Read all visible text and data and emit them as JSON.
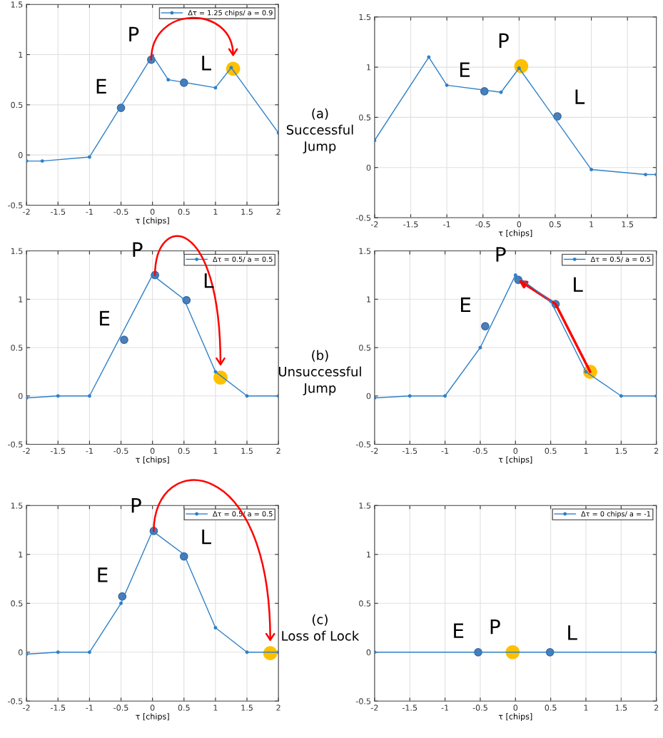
{
  "chart_data": [
    {
      "type": "line",
      "xlabel": "τ [chips]",
      "xlim": [
        -2,
        2
      ],
      "ylim": [
        -0.5,
        1.5
      ],
      "xticks": [
        -2,
        -1.5,
        -1,
        -0.5,
        0,
        0.5,
        1,
        1.5,
        2
      ],
      "yticks": [
        -0.5,
        0,
        0.5,
        1,
        1.5
      ],
      "grid": true,
      "legend": "top right",
      "marker": "circle",
      "series": [
        {
          "type": "line",
          "name": "Δτ = 1.25 chips/ a = 0.9",
          "color": "#2f80c8",
          "x": [
            -2,
            -1.75,
            -1,
            0,
            0.25,
            1,
            1.25,
            2
          ],
          "values": [
            -0.06,
            -0.06,
            -0.02,
            0.99,
            0.75,
            0.67,
            0.87,
            0.22
          ]
        },
        {
          "type": "scatter",
          "color": "#4a7fbb",
          "x": [
            -0.5,
            -0.02,
            0.5
          ],
          "values": [
            0.47,
            0.95,
            0.72
          ]
        },
        {
          "type": "scatter",
          "color": "#ffc000",
          "x": [
            1.28
          ],
          "values": [
            0.86
          ]
        }
      ],
      "annotations": [
        {
          "text": "E",
          "x": -0.5,
          "y": 0.47
        },
        {
          "text": "P",
          "x": -0.02,
          "y": 0.95
        },
        {
          "text": "L",
          "x": 0.5,
          "y": 0.72
        },
        "(a)\nSuccessful\nJump"
      ]
    },
    {
      "type": "line",
      "xlabel": "τ [chips]",
      "xlim": [
        -2,
        1.9
      ],
      "ylim": [
        -0.5,
        1.5
      ],
      "xticks": [
        -2,
        -1.5,
        -1,
        -0.5,
        0,
        0.5,
        1,
        1.5
      ],
      "yticks": [
        -0.5,
        0,
        0.5,
        1,
        1.5
      ],
      "grid": true,
      "marker": "circle",
      "series": [
        {
          "type": "line",
          "color": "#2f80c8",
          "x": [
            -2,
            -1.25,
            -1,
            -0.25,
            0,
            1,
            1.75,
            1.9
          ],
          "values": [
            0.27,
            1.1,
            0.82,
            0.75,
            0.99,
            -0.02,
            -0.07,
            -0.07
          ]
        },
        {
          "type": "scatter",
          "color": "#4a7fbb",
          "x": [
            -0.48,
            0.53
          ],
          "values": [
            0.76,
            0.51
          ]
        },
        {
          "type": "scatter",
          "color": "#ffc000",
          "x": [
            0.03
          ],
          "values": [
            1.01
          ]
        }
      ],
      "annotations": [
        {
          "text": "E",
          "x": -0.48,
          "y": 0.76
        },
        {
          "text": "P",
          "x": 0.03,
          "y": 1.01
        },
        {
          "text": "L",
          "x": 0.53,
          "y": 0.51
        }
      ]
    },
    {
      "type": "line",
      "xlabel": "τ [chips]",
      "xlim": [
        -2,
        2
      ],
      "ylim": [
        -0.5,
        1.5
      ],
      "xticks": [
        -2,
        -1.5,
        -1,
        -0.5,
        0,
        0.5,
        1,
        1.5,
        2
      ],
      "yticks": [
        -0.5,
        0,
        0.5,
        1,
        1.5
      ],
      "grid": true,
      "legend": "top right",
      "marker": "circle",
      "series": [
        {
          "type": "line",
          "name": "Δτ = 0.5/ a = 0.5",
          "color": "#2f80c8",
          "x": [
            -2,
            -1.5,
            -1,
            0,
            0.5,
            1,
            1.5,
            2
          ],
          "values": [
            -0.02,
            0,
            0,
            1.25,
            1.0,
            0.25,
            0,
            0
          ]
        },
        {
          "type": "scatter",
          "color": "#4a7fbb",
          "x": [
            -0.45,
            0.04,
            0.54
          ],
          "values": [
            0.58,
            1.25,
            0.99
          ]
        },
        {
          "type": "scatter",
          "color": "#ffc000",
          "x": [
            1.08
          ],
          "values": [
            0.19
          ]
        }
      ],
      "annotations": [
        {
          "text": "E",
          "x": -0.45,
          "y": 0.58
        },
        {
          "text": "P",
          "x": 0.04,
          "y": 1.25
        },
        {
          "text": "L",
          "x": 0.54,
          "y": 0.99
        },
        "(b)\nUnsuccessful\nJump"
      ]
    },
    {
      "type": "line",
      "xlabel": "τ [chips]",
      "xlim": [
        -2,
        2
      ],
      "ylim": [
        -0.5,
        1.5
      ],
      "xticks": [
        -2,
        -1.5,
        -1,
        -0.5,
        0,
        0.5,
        1,
        1.5,
        2
      ],
      "yticks": [
        -0.5,
        0,
        0.5,
        1,
        1.5
      ],
      "grid": true,
      "legend": "top right",
      "marker": "circle",
      "series": [
        {
          "type": "line",
          "name": "Δτ = 0.5/ a = 0.5",
          "color": "#2f80c8",
          "x": [
            -2,
            -1.5,
            -1,
            -0.5,
            0,
            0.5,
            1,
            1.5,
            2
          ],
          "values": [
            -0.02,
            0,
            0,
            0.5,
            1.25,
            0.98,
            0.25,
            0,
            0
          ]
        },
        {
          "type": "scatter",
          "color": "#4a7fbb",
          "x": [
            -0.43,
            0.04,
            0.57
          ],
          "values": [
            0.72,
            1.2,
            0.95
          ]
        },
        {
          "type": "scatter",
          "color": "#ffc000",
          "x": [
            1.06
          ],
          "values": [
            0.25
          ]
        }
      ],
      "annotations": [
        {
          "text": "E",
          "x": -0.43,
          "y": 0.72
        },
        {
          "text": "P",
          "x": 0.04,
          "y": 1.2
        },
        {
          "text": "L",
          "x": 0.57,
          "y": 0.95
        }
      ]
    },
    {
      "type": "line",
      "xlabel": "τ [chips]",
      "xlim": [
        -2,
        2
      ],
      "ylim": [
        -0.5,
        1.5
      ],
      "xticks": [
        -2,
        -1.5,
        -1,
        -0.5,
        0,
        0.5,
        1,
        1.5,
        2
      ],
      "yticks": [
        -0.5,
        0,
        0.5,
        1,
        1.5
      ],
      "grid": true,
      "legend": "top right",
      "marker": "circle",
      "series": [
        {
          "type": "line",
          "name": "Δτ = 0.5/ a = 0.5",
          "color": "#2f80c8",
          "x": [
            -2,
            -1.5,
            -1,
            -0.5,
            0,
            0.5,
            1,
            1.5,
            2
          ],
          "values": [
            -0.02,
            0,
            0,
            0.5,
            1.24,
            1.0,
            0.25,
            0,
            0
          ]
        },
        {
          "type": "scatter",
          "color": "#4a7fbb",
          "x": [
            -0.48,
            0.02,
            0.5
          ],
          "values": [
            0.57,
            1.24,
            0.98
          ]
        },
        {
          "type": "scatter",
          "color": "#ffc000",
          "x": [
            1.87
          ],
          "values": [
            -0.01
          ]
        }
      ],
      "annotations": [
        {
          "text": "E",
          "x": -0.48,
          "y": 0.57
        },
        {
          "text": "P",
          "x": 0.02,
          "y": 1.24
        },
        {
          "text": "L",
          "x": 0.5,
          "y": 0.98
        },
        "(c)\nLoss of Lock"
      ]
    },
    {
      "type": "line",
      "xlabel": "τ [chips]",
      "xlim": [
        -2,
        2
      ],
      "ylim": [
        -0.5,
        1.5
      ],
      "xticks": [
        -2,
        -1.5,
        -1,
        -0.5,
        0,
        0.5,
        1,
        1.5,
        2
      ],
      "yticks": [
        -0.5,
        0,
        0.5,
        1,
        1.5
      ],
      "grid": true,
      "legend": "top right",
      "marker": "circle",
      "series": [
        {
          "type": "line",
          "name": "Δτ = 0 chips/ a = -1",
          "color": "#2f80c8",
          "x": [
            -2,
            2
          ],
          "values": [
            0,
            0
          ]
        },
        {
          "type": "scatter",
          "color": "#4a7fbb",
          "x": [
            -0.53,
            0.49
          ],
          "values": [
            0,
            0
          ]
        },
        {
          "type": "scatter",
          "color": "#ffc000",
          "x": [
            -0.04
          ],
          "values": [
            0
          ]
        }
      ],
      "annotations": [
        {
          "text": "E",
          "x": -0.53,
          "y": 0
        },
        {
          "text": "P",
          "x": -0.04,
          "y": 0
        },
        {
          "text": "L",
          "x": 0.49,
          "y": 0
        }
      ]
    }
  ]
}
